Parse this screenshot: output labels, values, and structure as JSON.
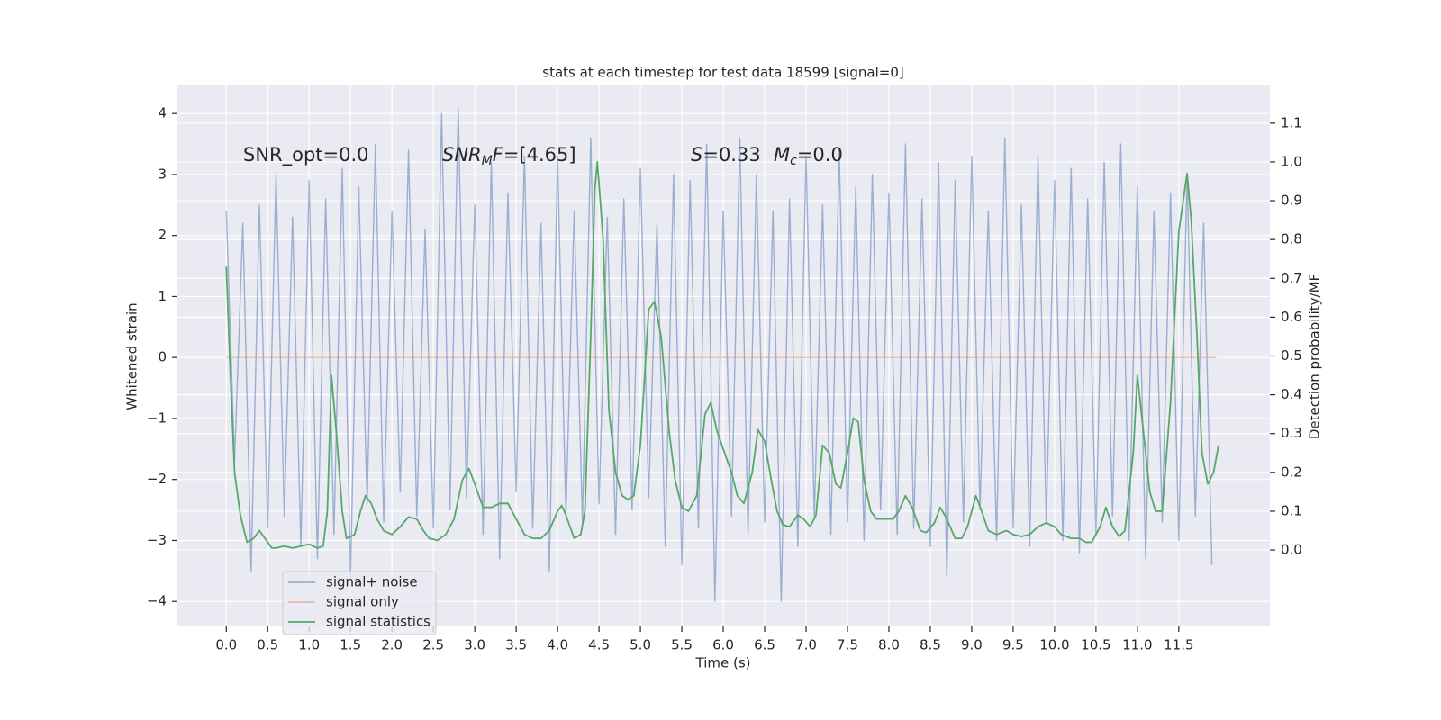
{
  "chart_data": {
    "type": "line",
    "title": "stats at each timestep for test data 18599 [signal=0]",
    "x_label": "Time (s)",
    "y_label": "Whitened strain",
    "y2_label": "Detection probability/MF",
    "xlim": [
      -0.59,
      12.6
    ],
    "ylim": [
      -4.41,
      4.46
    ],
    "y2lim": [
      -0.197,
      1.197
    ],
    "grid": true,
    "legend": "lower left",
    "xticks": [
      {
        "value": 0,
        "label": "0.0"
      },
      0.5,
      {
        "value": 1,
        "label": "1.0"
      },
      1.5,
      {
        "value": 2,
        "label": "2.0"
      },
      2.5,
      {
        "value": 3,
        "label": "3.0"
      },
      3.5,
      {
        "value": 4,
        "label": "4.0"
      },
      4.5,
      {
        "value": 5,
        "label": "5.0"
      },
      5.5,
      {
        "value": 6,
        "label": "6.0"
      },
      6.5,
      {
        "value": 7,
        "label": "7.0"
      },
      7.5,
      {
        "value": 8,
        "label": "8.0"
      },
      8.5,
      {
        "value": 9,
        "label": "9.0"
      },
      9.5,
      {
        "value": 10,
        "label": "10.0"
      },
      10.5,
      {
        "value": 11,
        "label": "11.0"
      },
      11.5
    ],
    "yticks": [
      {
        "value": -4,
        "label": "−4"
      },
      {
        "value": -3,
        "label": "−3"
      },
      {
        "value": -2,
        "label": "−2"
      },
      {
        "value": -1,
        "label": "−1"
      },
      0,
      1,
      2,
      3,
      4
    ],
    "y2ticks": [
      {
        "value": 0,
        "label": "0.0"
      },
      0.1,
      0.2,
      0.3,
      0.4,
      0.5,
      0.6,
      0.7,
      0.8,
      0.9,
      {
        "value": 1,
        "label": "1.0"
      },
      1.1
    ],
    "annotations": [
      [
        {
          "text": "SNR_opt=0.0",
          "style": "normal"
        }
      ],
      [
        {
          "text": "SNR",
          "style": "italic"
        },
        {
          "text": "M",
          "style": "sub"
        },
        {
          "text": "F",
          "style": "italic"
        },
        {
          "text": "=[4.65]",
          "style": "normal"
        }
      ],
      [
        {
          "text": "S",
          "style": "italic"
        },
        {
          "text": "=0.33",
          "style": "normal"
        }
      ],
      [
        {
          "text": "M",
          "style": "italic"
        },
        {
          "text": "c",
          "style": "sub"
        },
        {
          "text": "=0.0",
          "style": "normal"
        }
      ]
    ],
    "series": [
      {
        "name": "signal+ noise",
        "color": "#4c72b0",
        "opacity": 0.5,
        "x": [
          0.0,
          0.1,
          0.2,
          0.3,
          0.4,
          0.5,
          0.6,
          0.7,
          0.8,
          0.9,
          1.0,
          1.1,
          1.2,
          1.3,
          1.4,
          1.5,
          1.6,
          1.7,
          1.8,
          1.9,
          2.0,
          2.1,
          2.2,
          2.3,
          2.4,
          2.5,
          2.6,
          2.7,
          2.8,
          2.9,
          3.0,
          3.1,
          3.2,
          3.3,
          3.4,
          3.5,
          3.6,
          3.7,
          3.8,
          3.9,
          4.0,
          4.1,
          4.2,
          4.3,
          4.4,
          4.5,
          4.6,
          4.7,
          4.8,
          4.9,
          5.0,
          5.1,
          5.2,
          5.3,
          5.4,
          5.5,
          5.6,
          5.7,
          5.8,
          5.9,
          6.0,
          6.1,
          6.2,
          6.3,
          6.4,
          6.5,
          6.6,
          6.7,
          6.8,
          6.9,
          7.0,
          7.1,
          7.2,
          7.3,
          7.4,
          7.5,
          7.6,
          7.7,
          7.8,
          7.9,
          8.0,
          8.1,
          8.2,
          8.3,
          8.4,
          8.5,
          8.6,
          8.7,
          8.8,
          8.9,
          9.0,
          9.1,
          9.2,
          9.3,
          9.4,
          9.5,
          9.6,
          9.7,
          9.8,
          9.9,
          10.0,
          10.1,
          10.2,
          10.3,
          10.4,
          10.5,
          10.6,
          10.7,
          10.8,
          10.9,
          11.0,
          11.1,
          11.2,
          11.3,
          11.4,
          11.5,
          11.6,
          11.7,
          11.8,
          11.9
        ],
        "values": [
          2.4,
          -1.7,
          2.2,
          -3.5,
          2.5,
          -2.8,
          3.0,
          -2.6,
          2.3,
          -3.1,
          2.9,
          -3.3,
          2.6,
          -2.9,
          3.1,
          -3.6,
          2.8,
          -2.4,
          3.5,
          -2.7,
          2.4,
          -2.2,
          3.4,
          -2.6,
          2.1,
          -2.8,
          4.0,
          -2.5,
          4.1,
          -2.3,
          2.5,
          -2.9,
          3.2,
          -3.3,
          2.7,
          -2.2,
          3.3,
          -2.8,
          2.2,
          -3.5,
          3.3,
          -2.6,
          2.4,
          -2.7,
          3.6,
          -2.4,
          2.3,
          -2.9,
          2.6,
          -2.5,
          3.1,
          -2.3,
          2.2,
          -3.1,
          3.0,
          -3.4,
          2.9,
          -2.8,
          3.5,
          -4.0,
          2.4,
          -2.6,
          3.6,
          -2.9,
          3.0,
          -2.7,
          2.4,
          -4.0,
          2.6,
          -3.1,
          3.3,
          -2.6,
          2.5,
          -2.9,
          3.4,
          -2.7,
          2.8,
          -3.0,
          3.0,
          -2.5,
          2.7,
          -2.9,
          3.5,
          -2.8,
          2.6,
          -3.1,
          3.2,
          -3.6,
          2.9,
          -2.7,
          3.3,
          -2.5,
          2.4,
          -3.0,
          3.6,
          -2.8,
          2.5,
          -3.1,
          3.3,
          -2.7,
          2.9,
          -3.0,
          3.1,
          -3.2,
          2.6,
          -2.9,
          3.2,
          -2.6,
          3.5,
          -3.0,
          2.8,
          -3.3,
          2.4,
          -2.7,
          2.7,
          -3.0,
          3.0,
          -2.6,
          2.2,
          -3.4
        ]
      },
      {
        "name": "signal only",
        "color": "#dd8452",
        "opacity": 0.5,
        "x": [
          0.0,
          11.95
        ],
        "values": [
          0,
          0
        ]
      },
      {
        "name": "signal statistics",
        "color": "#55a868",
        "opacity": 1,
        "axis": "y2",
        "x": [
          0.0,
          0.05,
          0.1,
          0.17,
          0.25,
          0.33,
          0.4,
          0.5,
          0.55,
          0.6,
          0.7,
          0.8,
          0.9,
          1.0,
          1.1,
          1.17,
          1.22,
          1.27,
          1.33,
          1.4,
          1.45,
          1.55,
          1.62,
          1.68,
          1.75,
          1.82,
          1.9,
          2.0,
          2.1,
          2.2,
          2.3,
          2.38,
          2.45,
          2.55,
          2.65,
          2.75,
          2.85,
          2.93,
          3.0,
          3.1,
          3.2,
          3.3,
          3.4,
          3.5,
          3.6,
          3.7,
          3.8,
          3.9,
          4.0,
          4.05,
          4.1,
          4.2,
          4.28,
          4.33,
          4.4,
          4.45,
          4.48,
          4.55,
          4.62,
          4.7,
          4.78,
          4.85,
          4.92,
          5.0,
          5.1,
          5.17,
          5.25,
          5.35,
          5.42,
          5.5,
          5.58,
          5.68,
          5.78,
          5.85,
          5.92,
          6.0,
          6.1,
          6.17,
          6.25,
          6.35,
          6.42,
          6.5,
          6.58,
          6.65,
          6.72,
          6.8,
          6.9,
          6.97,
          7.05,
          7.12,
          7.2,
          7.28,
          7.36,
          7.42,
          7.5,
          7.57,
          7.63,
          7.7,
          7.78,
          7.85,
          7.93,
          8.05,
          8.12,
          8.2,
          8.28,
          8.38,
          8.45,
          8.55,
          8.62,
          8.7,
          8.8,
          8.88,
          8.95,
          9.05,
          9.12,
          9.2,
          9.3,
          9.42,
          9.5,
          9.6,
          9.7,
          9.8,
          9.9,
          10.0,
          10.08,
          10.2,
          10.3,
          10.38,
          10.45,
          10.55,
          10.62,
          10.7,
          10.78,
          10.85,
          10.95,
          11.0,
          11.05,
          11.15,
          11.22,
          11.3,
          11.4,
          11.5,
          11.6,
          11.65,
          11.72,
          11.78,
          11.85,
          11.92,
          11.98
        ],
        "values": [
          0.73,
          0.45,
          0.2,
          0.09,
          0.02,
          0.03,
          0.05,
          0.02,
          0.005,
          0.005,
          0.01,
          0.005,
          0.01,
          0.015,
          0.005,
          0.01,
          0.1,
          0.45,
          0.3,
          0.1,
          0.03,
          0.04,
          0.1,
          0.14,
          0.12,
          0.08,
          0.05,
          0.04,
          0.06,
          0.085,
          0.08,
          0.05,
          0.03,
          0.025,
          0.04,
          0.08,
          0.18,
          0.21,
          0.17,
          0.11,
          0.11,
          0.12,
          0.12,
          0.08,
          0.04,
          0.03,
          0.03,
          0.05,
          0.1,
          0.115,
          0.09,
          0.03,
          0.04,
          0.1,
          0.55,
          0.93,
          1.0,
          0.8,
          0.36,
          0.2,
          0.14,
          0.13,
          0.14,
          0.27,
          0.62,
          0.64,
          0.55,
          0.3,
          0.18,
          0.11,
          0.1,
          0.14,
          0.35,
          0.38,
          0.31,
          0.26,
          0.2,
          0.14,
          0.12,
          0.2,
          0.31,
          0.28,
          0.18,
          0.1,
          0.065,
          0.06,
          0.09,
          0.08,
          0.06,
          0.09,
          0.27,
          0.25,
          0.17,
          0.16,
          0.25,
          0.34,
          0.33,
          0.18,
          0.1,
          0.08,
          0.08,
          0.08,
          0.1,
          0.14,
          0.11,
          0.05,
          0.045,
          0.07,
          0.11,
          0.08,
          0.03,
          0.03,
          0.06,
          0.14,
          0.1,
          0.05,
          0.04,
          0.05,
          0.04,
          0.035,
          0.04,
          0.06,
          0.07,
          0.06,
          0.04,
          0.03,
          0.03,
          0.02,
          0.02,
          0.06,
          0.11,
          0.06,
          0.035,
          0.05,
          0.25,
          0.45,
          0.35,
          0.15,
          0.1,
          0.1,
          0.38,
          0.82,
          0.97,
          0.85,
          0.55,
          0.25,
          0.17,
          0.2,
          0.27
        ]
      }
    ]
  }
}
